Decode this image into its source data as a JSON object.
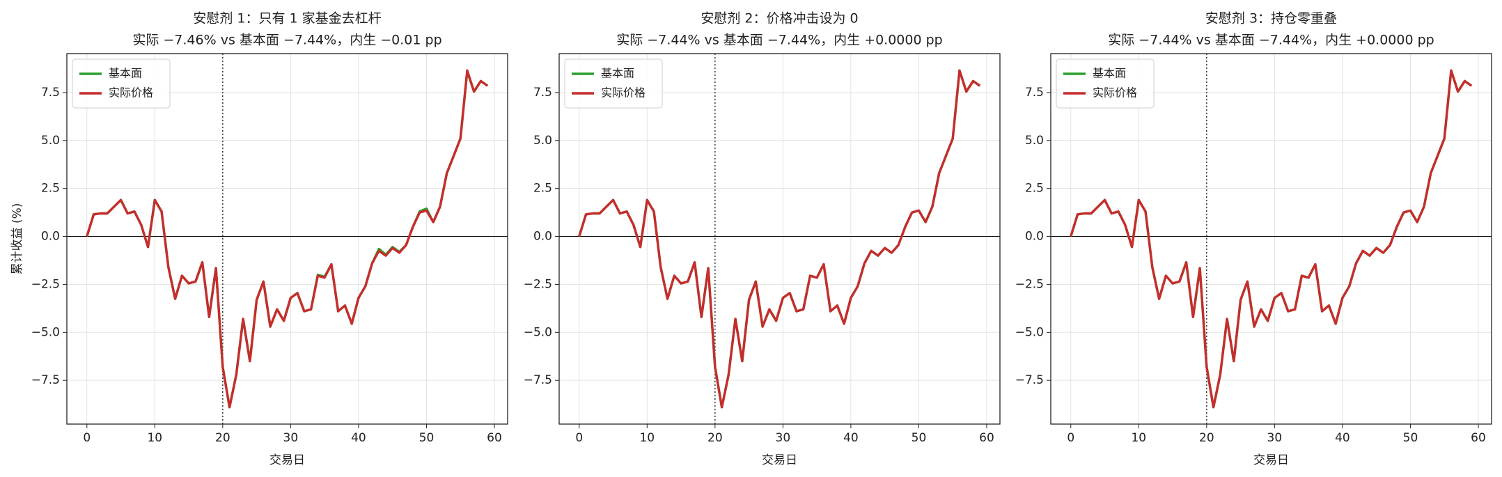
{
  "chart_data": [
    {
      "type": "line",
      "title": "安慰剂 1：只有 1 家基金去杠杆",
      "subtitle": "实际 −7.46% vs 基本面 −7.44%，内生 −0.01 pp",
      "xlabel": "交易日",
      "ylabel": "累计收益 (%)",
      "x": [
        0,
        1,
        2,
        3,
        4,
        5,
        6,
        7,
        8,
        9,
        10,
        11,
        12,
        13,
        14,
        15,
        16,
        17,
        18,
        19,
        20,
        21,
        22,
        23,
        24,
        25,
        26,
        27,
        28,
        29,
        30,
        31,
        32,
        33,
        34,
        35,
        36,
        37,
        38,
        39,
        40,
        41,
        42,
        43,
        44,
        45,
        46,
        47,
        48,
        49,
        50,
        51,
        52,
        53,
        54,
        55,
        56,
        57,
        58,
        59
      ],
      "series": [
        {
          "name": "基本面",
          "color": "#2ca02c",
          "values": [
            0,
            1.15,
            1.2,
            1.2,
            1.55,
            1.9,
            1.2,
            1.3,
            0.6,
            -0.55,
            1.9,
            1.3,
            -1.6,
            -3.25,
            -2.05,
            -2.45,
            -2.35,
            -1.35,
            -4.2,
            -1.65,
            -6.8,
            -8.9,
            -7.2,
            -4.3,
            -6.5,
            -3.3,
            -2.35,
            -4.7,
            -3.8,
            -4.4,
            -3.2,
            -2.95,
            -3.9,
            -3.8,
            -2.0,
            -2.1,
            -1.45,
            -3.9,
            -3.6,
            -4.55,
            -3.2,
            -2.6,
            -1.4,
            -0.65,
            -0.95,
            -0.55,
            -0.8,
            -0.45,
            0.5,
            1.3,
            1.45,
            0.75,
            1.55,
            3.3,
            4.2,
            5.1,
            8.6,
            7.55,
            8.1,
            7.85
          ]
        },
        {
          "name": "实际价格",
          "color": "#c62d2d",
          "values": [
            0,
            1.15,
            1.2,
            1.2,
            1.55,
            1.9,
            1.2,
            1.3,
            0.6,
            -0.55,
            1.9,
            1.3,
            -1.6,
            -3.25,
            -2.05,
            -2.45,
            -2.35,
            -1.35,
            -4.2,
            -1.65,
            -6.8,
            -8.9,
            -7.2,
            -4.3,
            -6.5,
            -3.3,
            -2.35,
            -4.7,
            -3.8,
            -4.4,
            -3.2,
            -2.95,
            -3.9,
            -3.8,
            -2.05,
            -2.15,
            -1.45,
            -3.9,
            -3.6,
            -4.55,
            -3.2,
            -2.6,
            -1.4,
            -0.75,
            -1.0,
            -0.6,
            -0.85,
            -0.45,
            0.5,
            1.25,
            1.35,
            0.75,
            1.55,
            3.3,
            4.2,
            5.1,
            8.65,
            7.55,
            8.1,
            7.85
          ]
        }
      ],
      "xlim": [
        -2.95,
        61.95
      ],
      "ylim": [
        -9.78,
        9.53
      ],
      "xticks": [
        0,
        10,
        20,
        30,
        40,
        50,
        60
      ],
      "yticks": [
        {
          "value": -7.5,
          "label": "−7.5"
        },
        {
          "value": -5,
          "label": "−5.0"
        },
        {
          "value": -2.5,
          "label": "−2.5"
        },
        {
          "value": 0,
          "label": "0.0"
        },
        {
          "value": 2.5,
          "label": "2.5"
        },
        {
          "value": 5,
          "label": "5.0"
        },
        {
          "value": 7.5,
          "label": "7.5"
        }
      ],
      "grid": true,
      "legend": "upper left",
      "vline": 20,
      "hline": 0
    },
    {
      "type": "line",
      "title": "安慰剂 2：价格冲击设为 0",
      "subtitle": "实际 −7.44% vs 基本面 −7.44%，内生 +0.0000 pp",
      "xlabel": "交易日",
      "x": [
        0,
        1,
        2,
        3,
        4,
        5,
        6,
        7,
        8,
        9,
        10,
        11,
        12,
        13,
        14,
        15,
        16,
        17,
        18,
        19,
        20,
        21,
        22,
        23,
        24,
        25,
        26,
        27,
        28,
        29,
        30,
        31,
        32,
        33,
        34,
        35,
        36,
        37,
        38,
        39,
        40,
        41,
        42,
        43,
        44,
        45,
        46,
        47,
        48,
        49,
        50,
        51,
        52,
        53,
        54,
        55,
        56,
        57,
        58,
        59
      ],
      "series": [
        {
          "name": "基本面",
          "color": "#2ca02c",
          "values": [
            0,
            1.15,
            1.2,
            1.2,
            1.55,
            1.9,
            1.2,
            1.3,
            0.6,
            -0.55,
            1.9,
            1.3,
            -1.6,
            -3.25,
            -2.05,
            -2.45,
            -2.35,
            -1.35,
            -4.2,
            -1.65,
            -6.8,
            -8.9,
            -7.2,
            -4.3,
            -6.5,
            -3.3,
            -2.35,
            -4.7,
            -3.8,
            -4.4,
            -3.2,
            -2.95,
            -3.9,
            -3.8,
            -2.05,
            -2.15,
            -1.45,
            -3.9,
            -3.6,
            -4.55,
            -3.2,
            -2.6,
            -1.4,
            -0.75,
            -1.0,
            -0.6,
            -0.85,
            -0.45,
            0.5,
            1.25,
            1.35,
            0.75,
            1.55,
            3.3,
            4.2,
            5.1,
            8.65,
            7.55,
            8.1,
            7.85
          ]
        },
        {
          "name": "实际价格",
          "color": "#c62d2d",
          "values": [
            0,
            1.15,
            1.2,
            1.2,
            1.55,
            1.9,
            1.2,
            1.3,
            0.6,
            -0.55,
            1.9,
            1.3,
            -1.6,
            -3.25,
            -2.05,
            -2.45,
            -2.35,
            -1.35,
            -4.2,
            -1.65,
            -6.8,
            -8.9,
            -7.2,
            -4.3,
            -6.5,
            -3.3,
            -2.35,
            -4.7,
            -3.8,
            -4.4,
            -3.2,
            -2.95,
            -3.9,
            -3.8,
            -2.05,
            -2.15,
            -1.45,
            -3.9,
            -3.6,
            -4.55,
            -3.2,
            -2.6,
            -1.4,
            -0.75,
            -1.0,
            -0.6,
            -0.85,
            -0.45,
            0.5,
            1.25,
            1.35,
            0.75,
            1.55,
            3.3,
            4.2,
            5.1,
            8.65,
            7.55,
            8.1,
            7.85
          ]
        }
      ],
      "xlim": [
        -2.95,
        61.95
      ],
      "ylim": [
        -9.78,
        9.53
      ],
      "xticks": [
        0,
        10,
        20,
        30,
        40,
        50,
        60
      ],
      "yticks": [
        {
          "value": -7.5,
          "label": "−7.5"
        },
        {
          "value": -5,
          "label": "−5.0"
        },
        {
          "value": -2.5,
          "label": "−2.5"
        },
        {
          "value": 0,
          "label": "0.0"
        },
        {
          "value": 2.5,
          "label": "2.5"
        },
        {
          "value": 5,
          "label": "5.0"
        },
        {
          "value": 7.5,
          "label": "7.5"
        }
      ],
      "grid": true,
      "legend": "upper left",
      "vline": 20,
      "hline": 0
    },
    {
      "type": "line",
      "title": "安慰剂 3：持仓零重叠",
      "subtitle": "实际 −7.44% vs 基本面 −7.44%，内生 +0.0000 pp",
      "xlabel": "交易日",
      "x": [
        0,
        1,
        2,
        3,
        4,
        5,
        6,
        7,
        8,
        9,
        10,
        11,
        12,
        13,
        14,
        15,
        16,
        17,
        18,
        19,
        20,
        21,
        22,
        23,
        24,
        25,
        26,
        27,
        28,
        29,
        30,
        31,
        32,
        33,
        34,
        35,
        36,
        37,
        38,
        39,
        40,
        41,
        42,
        43,
        44,
        45,
        46,
        47,
        48,
        49,
        50,
        51,
        52,
        53,
        54,
        55,
        56,
        57,
        58,
        59
      ],
      "series": [
        {
          "name": "基本面",
          "color": "#2ca02c",
          "values": [
            0,
            1.15,
            1.2,
            1.2,
            1.55,
            1.9,
            1.2,
            1.3,
            0.6,
            -0.55,
            1.9,
            1.3,
            -1.6,
            -3.25,
            -2.05,
            -2.45,
            -2.35,
            -1.35,
            -4.2,
            -1.65,
            -6.8,
            -8.9,
            -7.2,
            -4.3,
            -6.5,
            -3.3,
            -2.35,
            -4.7,
            -3.8,
            -4.4,
            -3.2,
            -2.95,
            -3.9,
            -3.8,
            -2.05,
            -2.15,
            -1.45,
            -3.9,
            -3.6,
            -4.55,
            -3.2,
            -2.6,
            -1.4,
            -0.75,
            -1.0,
            -0.6,
            -0.85,
            -0.45,
            0.5,
            1.25,
            1.35,
            0.75,
            1.55,
            3.3,
            4.2,
            5.1,
            8.65,
            7.55,
            8.1,
            7.85
          ]
        },
        {
          "name": "实际价格",
          "color": "#c62d2d",
          "values": [
            0,
            1.15,
            1.2,
            1.2,
            1.55,
            1.9,
            1.2,
            1.3,
            0.6,
            -0.55,
            1.9,
            1.3,
            -1.6,
            -3.25,
            -2.05,
            -2.45,
            -2.35,
            -1.35,
            -4.2,
            -1.65,
            -6.8,
            -8.9,
            -7.2,
            -4.3,
            -6.5,
            -3.3,
            -2.35,
            -4.7,
            -3.8,
            -4.4,
            -3.2,
            -2.95,
            -3.9,
            -3.8,
            -2.05,
            -2.15,
            -1.45,
            -3.9,
            -3.6,
            -4.55,
            -3.2,
            -2.6,
            -1.4,
            -0.75,
            -1.0,
            -0.6,
            -0.85,
            -0.45,
            0.5,
            1.25,
            1.35,
            0.75,
            1.55,
            3.3,
            4.2,
            5.1,
            8.65,
            7.55,
            8.1,
            7.85
          ]
        }
      ],
      "xlim": [
        -2.95,
        61.95
      ],
      "ylim": [
        -9.78,
        9.53
      ],
      "xticks": [
        0,
        10,
        20,
        30,
        40,
        50,
        60
      ],
      "yticks": [
        {
          "value": -7.5,
          "label": "−7.5"
        },
        {
          "value": -5,
          "label": "−5.0"
        },
        {
          "value": -2.5,
          "label": "−2.5"
        },
        {
          "value": 0,
          "label": "0.0"
        },
        {
          "value": 2.5,
          "label": "2.5"
        },
        {
          "value": 5,
          "label": "5.0"
        },
        {
          "value": 7.5,
          "label": "7.5"
        }
      ],
      "grid": true,
      "legend": "upper left",
      "vline": 20,
      "hline": 0
    }
  ]
}
